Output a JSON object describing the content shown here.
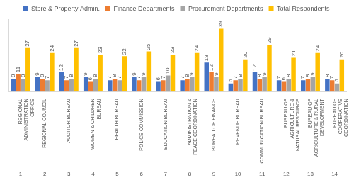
{
  "chart_data": {
    "type": "bar",
    "categories": [
      "REGIONAL ADMINISTRATION OFFICE",
      "REGIONAL COUNCIL",
      "AUDITOR BUREAU",
      "WOMEN & CHILDREN BUREAU",
      "HEALTH BUREAU",
      "POLICE COMMISSION",
      "EDUCATION BUREAU",
      "ADMINISTRATION & PEACE COORDINATION",
      "BUREAU OF FINANCE",
      "REVENUE BUREAU",
      "COMMUNICATION BUREAU",
      "BUREAU OF AGRICULTURE & NATURAL RESOURCE",
      "BUREAU OF AGRICULTURE & RURAL DEVELOPMENT",
      "BUREAU OF COOPERATIVE COORDINATION"
    ],
    "category_numbers": [
      1,
      2,
      3,
      4,
      5,
      6,
      7,
      8,
      9,
      10,
      11,
      12,
      13,
      14
    ],
    "series": [
      {
        "name": "Store & Property Admin.",
        "color": "#4472c4",
        "values": [
          8,
          9,
          12,
          9,
          7,
          9,
          6,
          7,
          18,
          5,
          12,
          7,
          7,
          8
        ]
      },
      {
        "name": "Finance Departments",
        "color": "#ed7d31",
        "values": [
          11,
          8,
          7,
          6,
          8,
          7,
          7,
          8,
          12,
          7,
          8,
          6,
          8,
          7
        ]
      },
      {
        "name": "Procurement Departments",
        "color": "#a5a5a5",
        "values": [
          8,
          7,
          8,
          8,
          7,
          9,
          10,
          9,
          9,
          8,
          9,
          8,
          9,
          5
        ]
      },
      {
        "name": "Total Respondents",
        "color": "#ffc000",
        "values": [
          27,
          24,
          27,
          23,
          22,
          25,
          23,
          24,
          39,
          20,
          29,
          21,
          24,
          20
        ]
      }
    ],
    "ylim": [
      0,
      45
    ],
    "grid": false,
    "legend": "top",
    "data_labels": true,
    "tick_labels": "x"
  }
}
